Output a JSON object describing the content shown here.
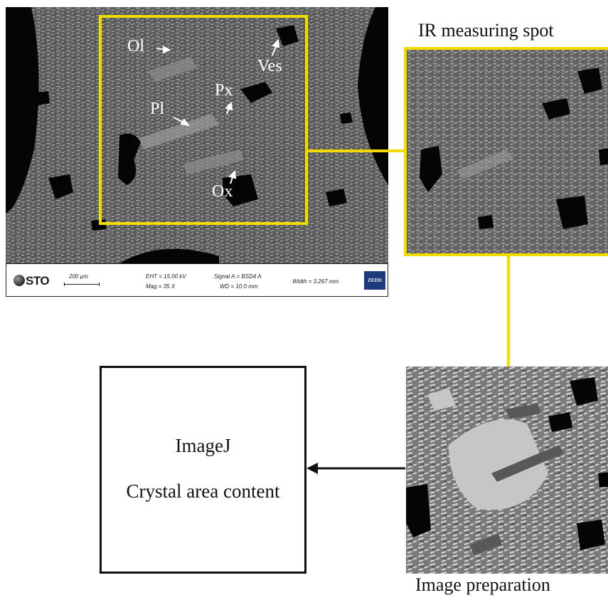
{
  "sem_labels": {
    "ol": "Ol",
    "ves": "Ves",
    "px": "Px",
    "pl": "Pl",
    "ox": "Ox"
  },
  "info_bar": {
    "logo": "STO",
    "scale": "200 µm",
    "eht": "EHT = 15.00 kV",
    "mag": "Mag =    35 X",
    "signal": "Signal A = BSD4 A",
    "wd": "WD = 10.0 mm",
    "width": "Width = 3.267 mm",
    "brand": "ZEISS"
  },
  "labels": {
    "ir_spot": "IR measuring spot",
    "image_prep": "Image preparation"
  },
  "imagej_box": {
    "title": "ImageJ",
    "subtitle": "Crystal area content"
  },
  "colors": {
    "highlight": "#f2dc00",
    "arrow": "#111111"
  }
}
